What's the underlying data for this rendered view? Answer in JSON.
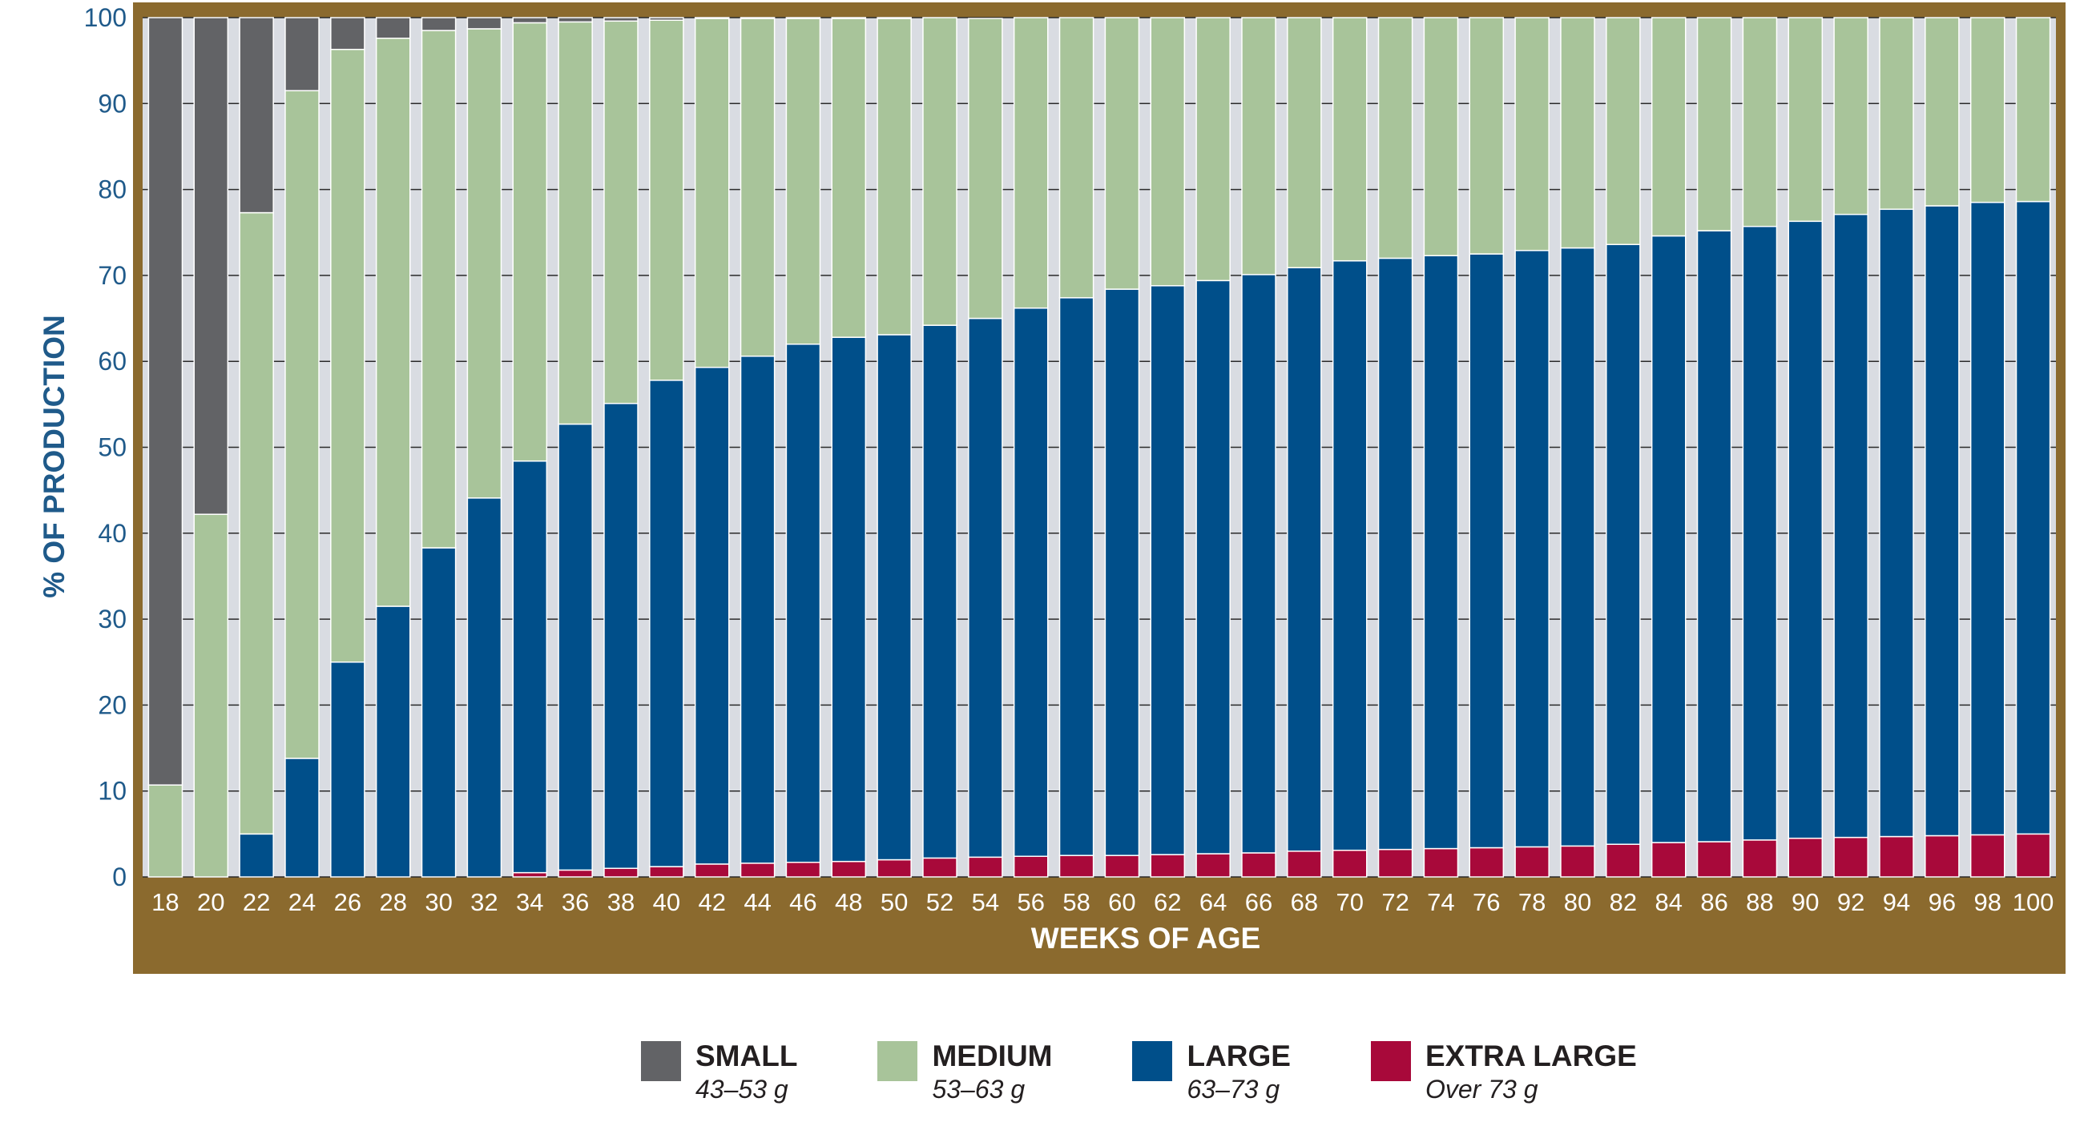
{
  "chart_data": {
    "type": "bar",
    "stacked": true,
    "title": "",
    "xlabel": "WEEKS OF AGE",
    "ylabel": "% OF PRODUCTION",
    "ylim": [
      0,
      100
    ],
    "yticks": [
      0,
      10,
      20,
      30,
      40,
      50,
      60,
      70,
      80,
      90,
      100
    ],
    "grid": true,
    "legend_position": "bottom",
    "categories": [
      "18",
      "20",
      "22",
      "24",
      "26",
      "28",
      "30",
      "32",
      "34",
      "36",
      "38",
      "40",
      "42",
      "44",
      "46",
      "48",
      "50",
      "52",
      "54",
      "56",
      "58",
      "60",
      "62",
      "64",
      "66",
      "68",
      "70",
      "72",
      "74",
      "76",
      "78",
      "80",
      "82",
      "84",
      "86",
      "88",
      "90",
      "92",
      "94",
      "96",
      "98",
      "100"
    ],
    "series": [
      {
        "name": "EXTRA LARGE",
        "range": "Over 73 g",
        "color": "#a8093a",
        "values": [
          0,
          0,
          0,
          0,
          0,
          0,
          0,
          0,
          0.5,
          0.8,
          1.0,
          1.2,
          1.5,
          1.6,
          1.7,
          1.8,
          2.0,
          2.2,
          2.3,
          2.4,
          2.5,
          2.5,
          2.6,
          2.7,
          2.8,
          3.0,
          3.1,
          3.2,
          3.3,
          3.4,
          3.5,
          3.6,
          3.8,
          4.0,
          4.1,
          4.3,
          4.5,
          4.6,
          4.7,
          4.8,
          4.9,
          5.0
        ]
      },
      {
        "name": "LARGE",
        "range": "63–73 g",
        "color": "#004f8a",
        "values": [
          0,
          0,
          5.0,
          13.8,
          25.0,
          31.5,
          38.3,
          44.1,
          47.9,
          51.9,
          54.1,
          56.6,
          57.8,
          59.0,
          60.3,
          61.0,
          61.1,
          62.0,
          62.7,
          63.8,
          64.9,
          65.9,
          66.2,
          66.7,
          67.3,
          67.9,
          68.6,
          68.8,
          69.0,
          69.1,
          69.4,
          69.6,
          69.8,
          70.6,
          71.1,
          71.4,
          71.8,
          72.5,
          73.0,
          73.3,
          73.6,
          73.6
        ]
      },
      {
        "name": "MEDIUM",
        "range": "53–63 g",
        "color": "#a8c49a",
        "values": [
          10.7,
          42.2,
          72.3,
          77.7,
          71.3,
          66.1,
          60.2,
          54.6,
          51.0,
          46.8,
          44.5,
          41.9,
          40.6,
          39.3,
          37.9,
          37.1,
          36.8,
          35.8,
          34.9,
          33.8,
          32.6,
          31.6,
          31.2,
          30.6,
          29.9,
          29.1,
          28.3,
          28.0,
          27.7,
          27.5,
          27.1,
          26.8,
          26.4,
          25.4,
          24.8,
          24.3,
          23.7,
          22.9,
          22.3,
          21.9,
          21.5,
          21.4
        ]
      },
      {
        "name": "SMALL",
        "range": "43–53 g",
        "color": "#626366",
        "values": [
          89.3,
          57.8,
          22.7,
          8.5,
          3.7,
          2.4,
          1.5,
          1.3,
          0.6,
          0.5,
          0.4,
          0.3,
          0.1,
          0.1,
          0.1,
          0.1,
          0.1,
          0,
          0,
          0,
          0,
          0,
          0,
          0,
          0,
          0,
          0,
          0,
          0,
          0,
          0,
          0,
          0,
          0,
          0,
          0,
          0,
          0,
          0,
          0,
          0,
          0
        ]
      }
    ]
  },
  "legend": {
    "items": [
      {
        "name": "SMALL",
        "range": "43–53 g",
        "color": "#626366"
      },
      {
        "name": "MEDIUM",
        "range": "53–63 g",
        "color": "#a8c49a"
      },
      {
        "name": "LARGE",
        "range": "63–73 g",
        "color": "#004f8a"
      },
      {
        "name": "EXTRA LARGE",
        "range": "Over 73 g",
        "color": "#a8093a"
      }
    ]
  },
  "colors": {
    "frame": "#8b6a2e",
    "plot_bg": "#d9dce2",
    "axis_text": "#1f5a8a"
  }
}
